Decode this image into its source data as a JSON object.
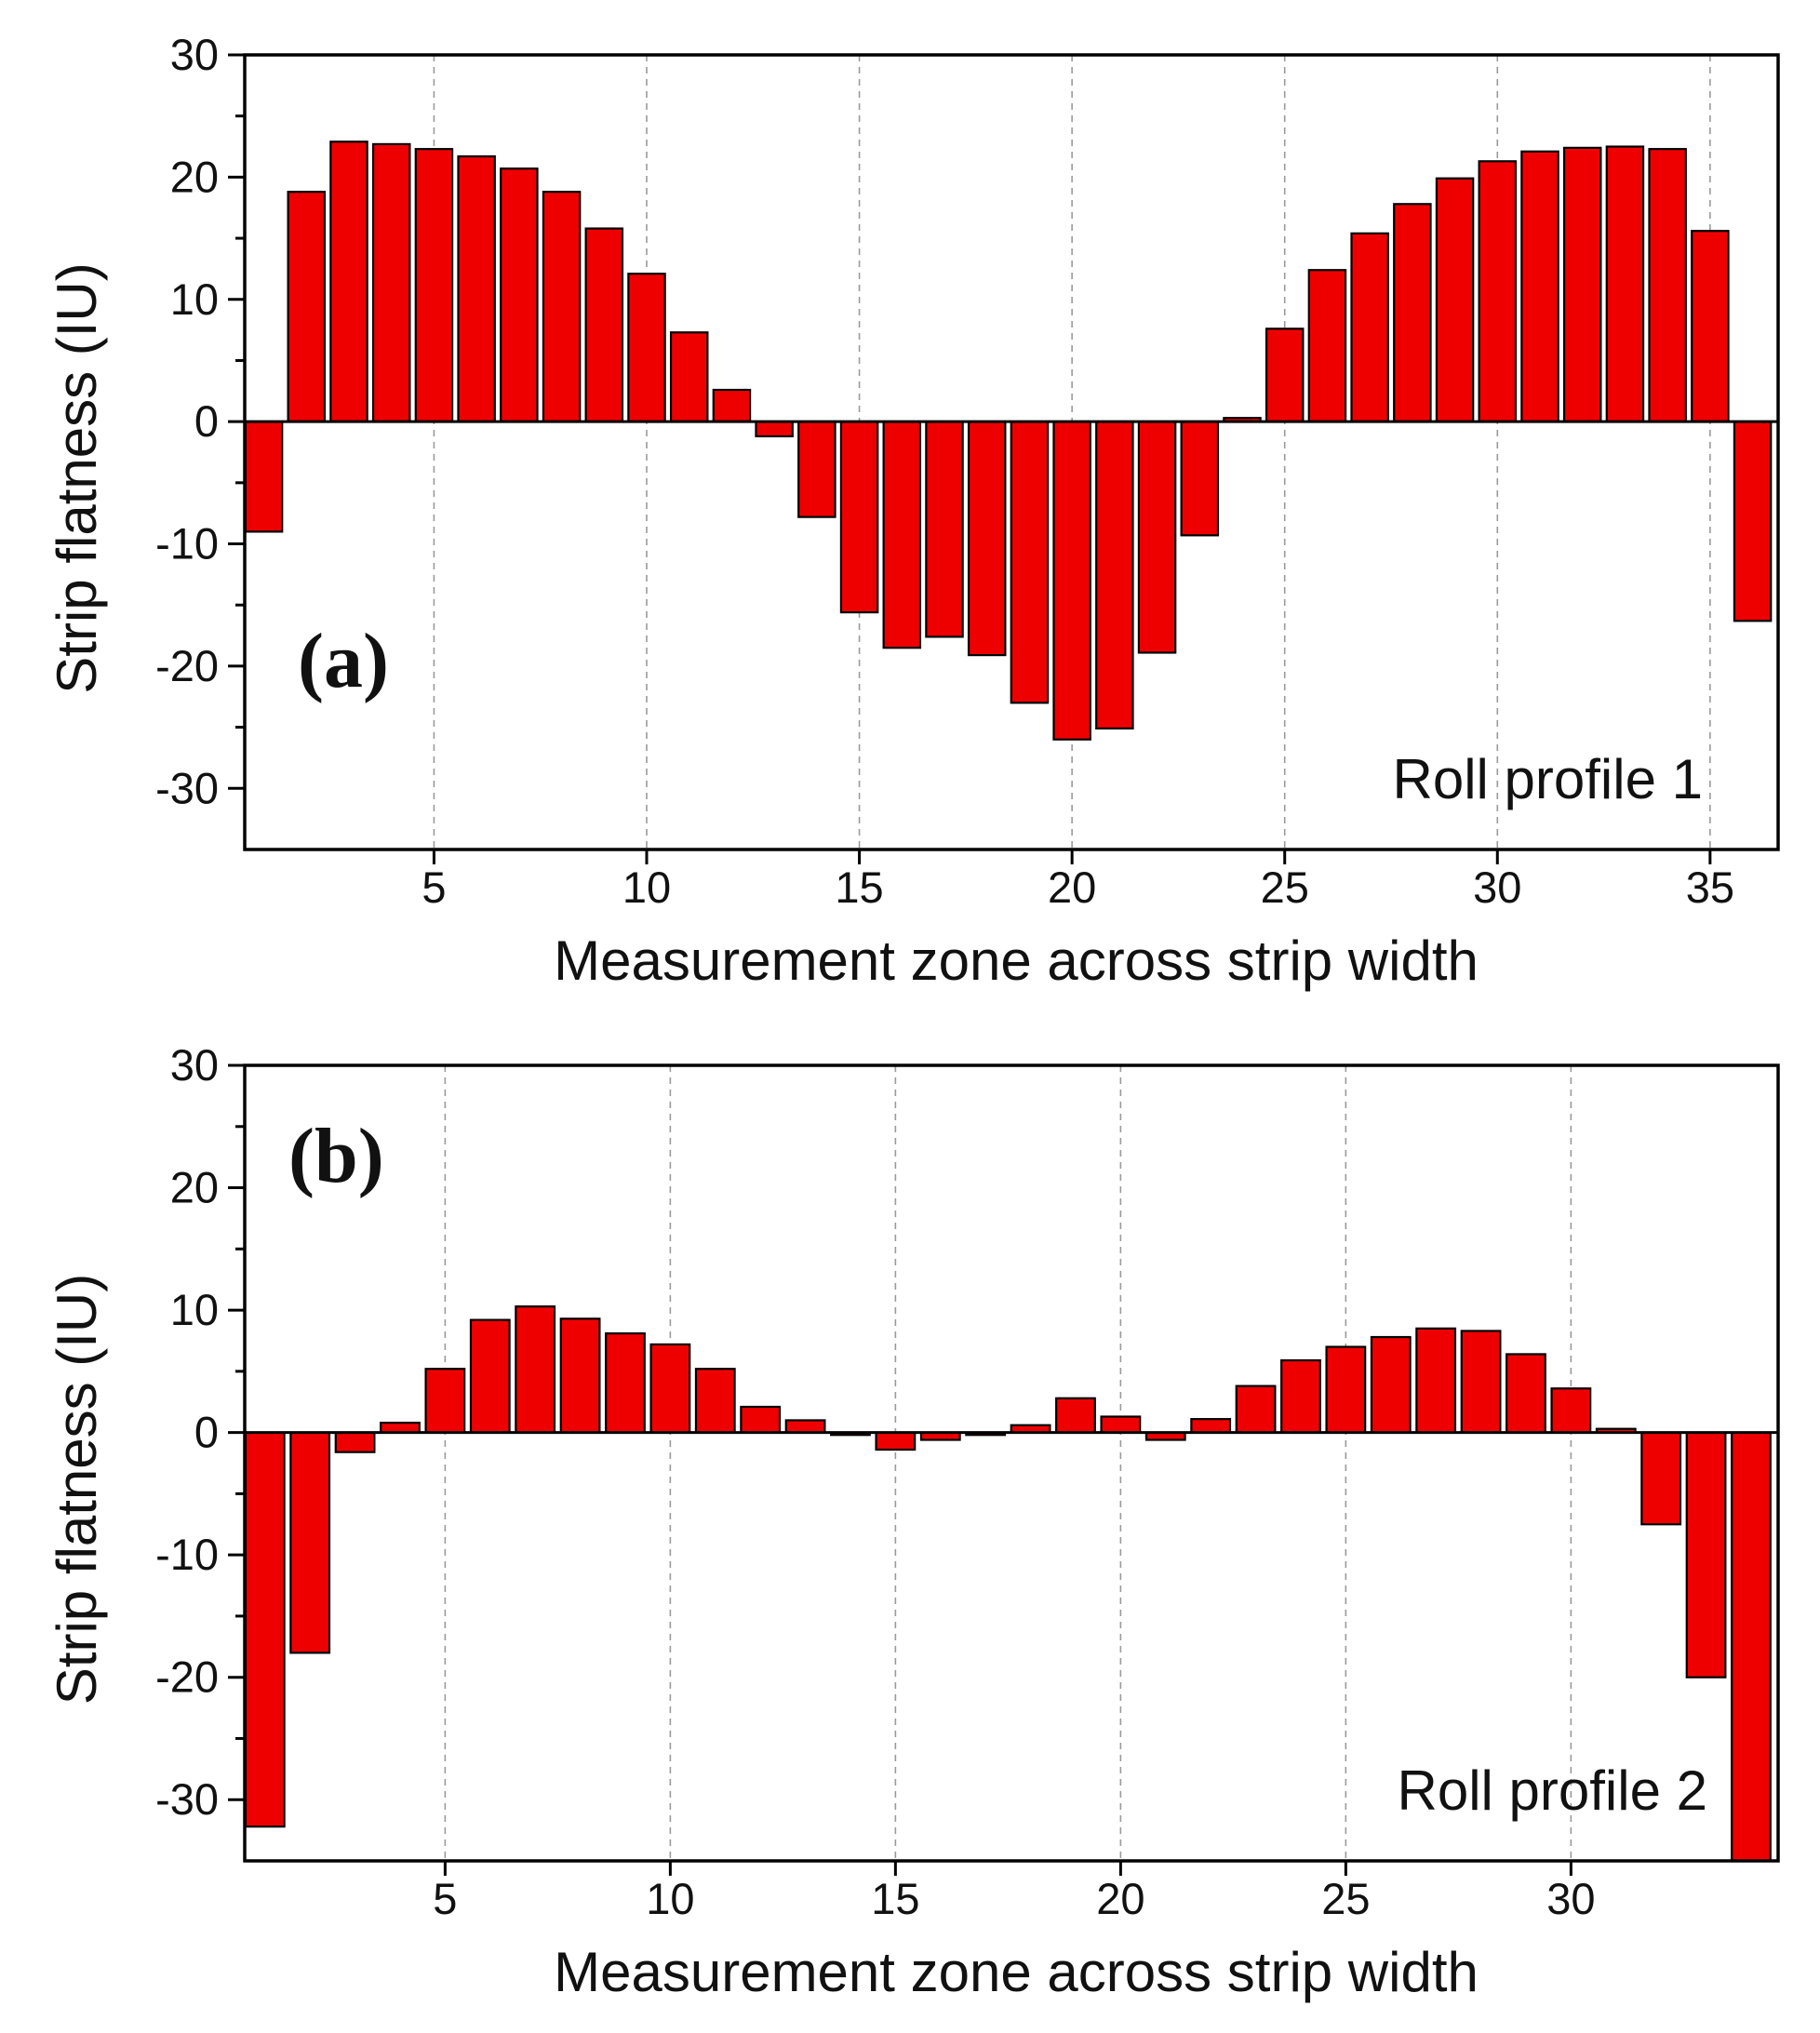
{
  "colors": {
    "bar_fill": "#ee0000",
    "bar_stroke": "#000000",
    "grid": "#9a9a9a",
    "axis": "#000000"
  },
  "chart_data": [
    {
      "type": "bar",
      "panel_label": "(a)",
      "annotation": "Roll profile 1",
      "xlabel": "Measurement zone across strip width",
      "ylabel": "Strip flatness (IU)",
      "title": "",
      "xlim": [
        0.55,
        36.6
      ],
      "ylim": [
        -35,
        30
      ],
      "xticks": [
        5,
        10,
        15,
        20,
        25,
        30,
        35
      ],
      "yticks": [
        -30,
        -20,
        -10,
        0,
        10,
        20,
        30
      ],
      "grid": "vertical dashed at x ticks",
      "categories": [
        1,
        2,
        3,
        4,
        5,
        6,
        7,
        8,
        9,
        10,
        11,
        12,
        13,
        14,
        15,
        16,
        17,
        18,
        19,
        20,
        21,
        22,
        23,
        24,
        25,
        26,
        27,
        28,
        29,
        30,
        31,
        32,
        33,
        34,
        35,
        36
      ],
      "values": [
        -9,
        18.8,
        22.9,
        22.7,
        22.3,
        21.7,
        20.7,
        18.8,
        15.8,
        12.1,
        7.3,
        2.6,
        -1.2,
        -7.8,
        -15.6,
        -18.5,
        -17.6,
        -19.1,
        -23,
        -26,
        -25.1,
        -18.9,
        -9.3,
        0.3,
        7.6,
        12.4,
        15.4,
        17.8,
        19.9,
        21.3,
        22.1,
        22.4,
        22.5,
        22.3,
        15.6,
        -16.3
      ]
    },
    {
      "type": "bar",
      "panel_label": "(b)",
      "annotation": "Roll profile 2",
      "xlabel": "Measurement zone across strip width",
      "ylabel": "Strip flatness (IU)",
      "title": "",
      "xlim": [
        0.55,
        34.6
      ],
      "ylim": [
        -35,
        30
      ],
      "xticks": [
        5,
        10,
        15,
        20,
        25,
        30
      ],
      "yticks": [
        -30,
        -20,
        -10,
        0,
        10,
        20,
        30
      ],
      "grid": "vertical dashed at x ticks",
      "categories": [
        1,
        2,
        3,
        4,
        5,
        6,
        7,
        8,
        9,
        10,
        11,
        12,
        13,
        14,
        15,
        16,
        17,
        18,
        19,
        20,
        21,
        22,
        23,
        24,
        25,
        26,
        27,
        28,
        29,
        30,
        31,
        32,
        33,
        34
      ],
      "values": [
        -32.2,
        -18,
        -1.6,
        0.8,
        5.2,
        9.2,
        10.3,
        9.3,
        8.1,
        7.2,
        5.2,
        2.1,
        1.0,
        -0.2,
        -1.4,
        -0.6,
        -0.2,
        0.6,
        2.8,
        1.3,
        -0.6,
        1.1,
        3.8,
        5.9,
        7.0,
        7.8,
        8.5,
        8.3,
        6.4,
        3.6,
        0.3,
        -7.5,
        -20,
        -35
      ]
    }
  ]
}
